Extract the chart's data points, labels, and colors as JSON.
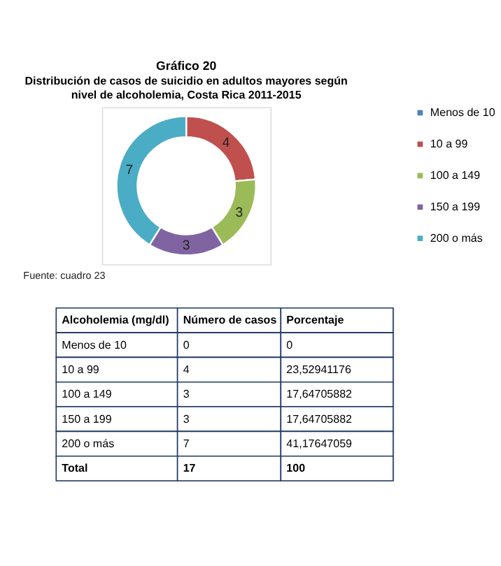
{
  "chart_data": [
    {
      "type": "donut",
      "title": "Gráfico 20",
      "subtitle": "Distribución de casos de suicidio en adultos mayores según nivel de alcoholemia, Costa Rica 2011-2015",
      "categories": [
        "Menos de 10",
        "10 a 99",
        "100 a 149",
        "150 a 199",
        "200 o más"
      ],
      "values": [
        0,
        4,
        3,
        3,
        7
      ],
      "colors": [
        "#4f81bd",
        "#c0504d",
        "#9bbb59",
        "#8064a2",
        "#4bacc6"
      ],
      "value_labels": [
        null,
        "4",
        "3",
        "3",
        "7"
      ],
      "legend": "right",
      "annotations": [
        "Fuente: cuadro 23"
      ]
    },
    {
      "type": "other",
      "cell_labels": [
        [
          "Alcoholemia (mg/dl)",
          "Número de casos",
          "Porcentaje"
        ],
        [
          "Menos de 10",
          "0",
          "0"
        ],
        [
          "10 a 99",
          "4",
          "23,52941176"
        ],
        [
          "100 a 149",
          "3",
          "17,64705882"
        ],
        [
          "150 a 199",
          "3",
          "17,64705882"
        ],
        [
          "200 o más",
          "7",
          "41,17647059"
        ],
        [
          "Total",
          "17",
          "100"
        ]
      ]
    }
  ]
}
